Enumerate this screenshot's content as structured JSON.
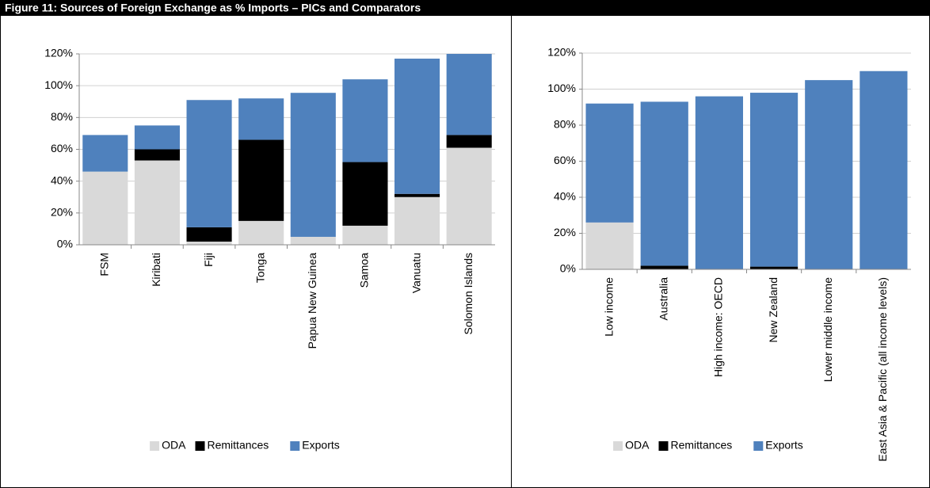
{
  "title": "Figure 11: Sources of Foreign Exchange as % Imports – PICs and Comparators",
  "chart_data": [
    {
      "type": "stacked-bar",
      "grid": true,
      "legend": "bottom",
      "categories": [
        "FSM",
        "Kiribati",
        "Fiji",
        "Tonga",
        "Papua New Guinea",
        "Samoa",
        "Vanuatu",
        "Solomon Islands"
      ],
      "series": [
        {
          "name": "ODA",
          "color": "#d9d9d9",
          "values": [
            46,
            53,
            2,
            15,
            5,
            12,
            30,
            61
          ]
        },
        {
          "name": "Remittances",
          "color": "#000000",
          "values": [
            0,
            7,
            9,
            51,
            0,
            40,
            2,
            8
          ]
        },
        {
          "name": "Exports",
          "color": "#4f81bd",
          "values": [
            23,
            15,
            80,
            26,
            90.5,
            52,
            85,
            51
          ]
        }
      ],
      "ylim": [
        0,
        120
      ],
      "yticks": [
        {
          "value": 0,
          "label": "0%"
        },
        {
          "value": 20,
          "label": "20%"
        },
        {
          "value": 40,
          "label": "40%"
        },
        {
          "value": 60,
          "label": "60%"
        },
        {
          "value": 80,
          "label": "80%"
        },
        {
          "value": 100,
          "label": "100%"
        },
        {
          "value": 120,
          "label": "120%"
        }
      ]
    },
    {
      "type": "stacked-bar",
      "grid": true,
      "legend": "bottom",
      "categories": [
        "Low income",
        "Australia",
        "High income: OECD",
        "New Zealand",
        "Lower middle income",
        "East Asia & Pacific (all income levels)"
      ],
      "series": [
        {
          "name": "ODA",
          "color": "#d9d9d9",
          "values": [
            26,
            0,
            0,
            0,
            0,
            0
          ]
        },
        {
          "name": "Remittances",
          "color": "#000000",
          "values": [
            0,
            2,
            0,
            1.5,
            0,
            0
          ]
        },
        {
          "name": "Exports",
          "color": "#4f81bd",
          "values": [
            66,
            91,
            96,
            96.5,
            105,
            110
          ]
        }
      ],
      "ylim": [
        0,
        120
      ],
      "yticks": [
        {
          "value": 0,
          "label": "0%"
        },
        {
          "value": 20,
          "label": "20%"
        },
        {
          "value": 40,
          "label": "40%"
        },
        {
          "value": 60,
          "label": "60%"
        },
        {
          "value": 80,
          "label": "80%"
        },
        {
          "value": 100,
          "label": "100%"
        },
        {
          "value": 120,
          "label": "120%"
        }
      ]
    }
  ]
}
